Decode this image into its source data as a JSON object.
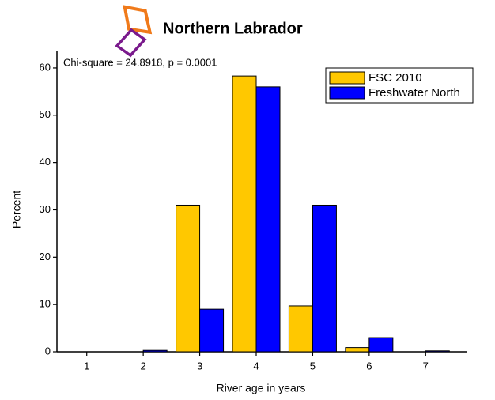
{
  "chart_data": {
    "type": "bar",
    "title": "Northern Labrador",
    "annotation": "Chi-square = 24.8918, p = 0.0001",
    "x_label": "River age in years",
    "y_label": "Percent",
    "categories": [
      "1",
      "2",
      "3",
      "4",
      "5",
      "6",
      "7"
    ],
    "series": [
      {
        "name": "FSC 2010",
        "color": "#ffc800",
        "values": [
          0,
          0,
          31,
          58.3,
          9.7,
          0.9,
          0
        ]
      },
      {
        "name": "Freshwater North",
        "color": "#0000ff",
        "values": [
          0,
          0.3,
          9,
          56,
          31,
          3,
          0.2
        ]
      }
    ],
    "ylim": [
      0,
      63.5
    ],
    "yticks": [
      0,
      10,
      20,
      30,
      40,
      50,
      60
    ],
    "legend": "upper right"
  }
}
